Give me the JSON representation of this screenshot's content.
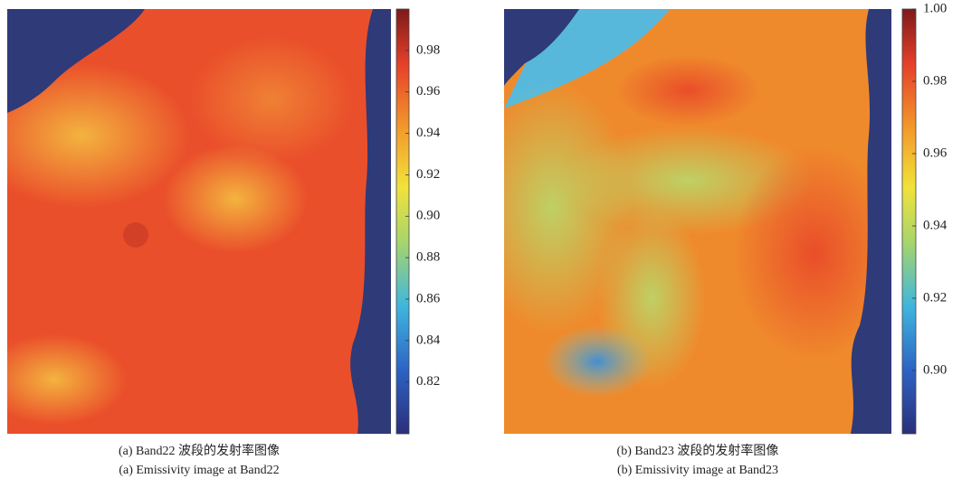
{
  "panels": [
    {
      "caption_zh": "(a) Band22 波段的发射率图像",
      "caption_en": "(a) Emissivity image at Band22",
      "colorbar": {
        "lim": [
          0.795,
          1.0
        ],
        "ticks": [
          0.82,
          0.84,
          0.86,
          0.88,
          {
            "value": 0.9,
            "label": "0.90"
          },
          0.92,
          0.94,
          0.96,
          0.98
        ]
      }
    },
    {
      "caption_zh": "(b) Band23 波段的发射率图像",
      "caption_en": "(b) Emissivity image at Band23",
      "colorbar": {
        "lim": [
          0.8825,
          1.0
        ],
        "ticks": [
          {
            "value": 0.9,
            "label": "0.90"
          },
          0.92,
          0.94,
          0.96,
          0.98,
          {
            "value": 1.0,
            "label": "1.00"
          }
        ]
      }
    }
  ]
}
